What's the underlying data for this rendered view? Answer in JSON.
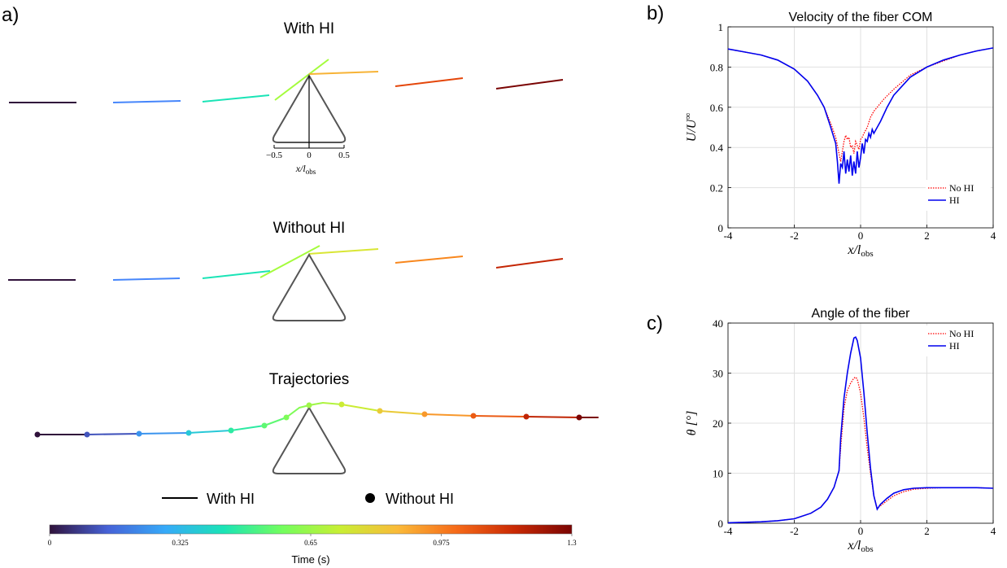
{
  "panel_labels": {
    "a": "a)",
    "b": "b)",
    "c": "c)"
  },
  "panel_a": {
    "with_hi_title": "With HI",
    "without_hi_title": "Without HI",
    "trajectories_title": "Trajectories",
    "inset_ticks": [
      "−0.5",
      "0",
      "0.5"
    ],
    "inset_xlabel": "x/l",
    "inset_xlabel_sub": "obs",
    "legend": {
      "line_label": "With HI",
      "dot_label": "Without HI"
    },
    "colorbar": {
      "label": "Time (s)",
      "ticks": [
        "0",
        "0.325",
        "0.65",
        "0.975",
        "1.3"
      ],
      "colors": [
        "#30123b",
        "#4662d7",
        "#36aaf9",
        "#1ae4b6",
        "#72fe5e",
        "#c8ef34",
        "#faba39",
        "#f66b19",
        "#ca2a04",
        "#7a0403"
      ]
    }
  },
  "chart_data": [
    {
      "type": "line",
      "title": "Velocity of the fiber COM",
      "xlabel": "x/l",
      "xlabel_sub": "obs",
      "ylabel": "U/U",
      "ylabel_sup": "∞",
      "xlim": [
        -4,
        4
      ],
      "ylim": [
        0,
        1
      ],
      "xticks": [
        -4,
        -2,
        0,
        2,
        4
      ],
      "yticks": [
        0,
        0.2,
        0.4,
        0.6,
        0.8,
        1
      ],
      "grid": true,
      "legend_position": "bottom-right",
      "series": [
        {
          "name": "No HI",
          "color": "#ff0000",
          "dash": "dotted",
          "x": [
            -4,
            -3.5,
            -3,
            -2.5,
            -2,
            -1.6,
            -1.3,
            -1.1,
            -0.9,
            -0.75,
            -0.65,
            -0.6,
            -0.5,
            -0.45,
            -0.4,
            -0.35,
            -0.3,
            -0.25,
            -0.2,
            -0.15,
            -0.1,
            -0.05,
            0,
            0.05,
            0.1,
            0.2,
            0.3,
            0.4,
            0.5,
            0.7,
            1,
            1.5,
            2,
            2.5,
            3,
            3.5,
            4
          ],
          "y": [
            0.89,
            0.875,
            0.86,
            0.835,
            0.79,
            0.73,
            0.66,
            0.6,
            0.52,
            0.45,
            0.37,
            0.33,
            0.43,
            0.46,
            0.44,
            0.45,
            0.4,
            0.41,
            0.37,
            0.43,
            0.41,
            0.39,
            0.44,
            0.45,
            0.47,
            0.5,
            0.55,
            0.58,
            0.6,
            0.64,
            0.69,
            0.76,
            0.8,
            0.83,
            0.86,
            0.88,
            0.895
          ]
        },
        {
          "name": "HI",
          "color": "#0000ee",
          "dash": "solid",
          "x": [
            -4,
            -3.5,
            -3,
            -2.5,
            -2,
            -1.6,
            -1.3,
            -1.1,
            -0.9,
            -0.75,
            -0.7,
            -0.65,
            -0.6,
            -0.55,
            -0.5,
            -0.45,
            -0.4,
            -0.35,
            -0.3,
            -0.25,
            -0.2,
            -0.15,
            -0.1,
            -0.05,
            0,
            0.05,
            0.1,
            0.15,
            0.2,
            0.25,
            0.3,
            0.35,
            0.4,
            0.5,
            0.6,
            0.8,
            1,
            1.5,
            2,
            2.5,
            3,
            3.5,
            4
          ],
          "y": [
            0.89,
            0.875,
            0.86,
            0.835,
            0.79,
            0.73,
            0.66,
            0.6,
            0.5,
            0.42,
            0.33,
            0.22,
            0.32,
            0.3,
            0.38,
            0.27,
            0.34,
            0.28,
            0.36,
            0.26,
            0.33,
            0.27,
            0.38,
            0.3,
            0.35,
            0.42,
            0.37,
            0.44,
            0.43,
            0.47,
            0.45,
            0.49,
            0.47,
            0.5,
            0.53,
            0.6,
            0.66,
            0.75,
            0.8,
            0.835,
            0.86,
            0.88,
            0.895
          ]
        }
      ]
    },
    {
      "type": "line",
      "title": "Angle of the fiber",
      "xlabel": "x/l",
      "xlabel_sub": "obs",
      "ylabel": "θ [°]",
      "xlim": [
        -4,
        4
      ],
      "ylim": [
        0,
        40
      ],
      "xticks": [
        -4,
        -2,
        0,
        2,
        4
      ],
      "yticks": [
        0,
        10,
        20,
        30,
        40
      ],
      "grid": true,
      "legend_position": "top-right",
      "series": [
        {
          "name": "No HI",
          "color": "#ff0000",
          "dash": "dotted",
          "x": [
            -4,
            -3,
            -2.5,
            -2,
            -1.5,
            -1.2,
            -1,
            -0.8,
            -0.65,
            -0.6,
            -0.5,
            -0.4,
            -0.3,
            -0.2,
            -0.15,
            -0.1,
            0,
            0.1,
            0.2,
            0.3,
            0.4,
            0.5,
            0.6,
            0.8,
            1,
            1.3,
            1.6,
            2,
            2.5,
            3,
            3.5,
            4
          ],
          "y": [
            0.1,
            0.3,
            0.5,
            0.9,
            2,
            3.2,
            4.8,
            7.2,
            10.5,
            15,
            23,
            26.5,
            28,
            29,
            29.2,
            28.8,
            26,
            21,
            15,
            10,
            5.5,
            3,
            3.5,
            4.5,
            5.5,
            6.3,
            6.8,
            7,
            7.1,
            7.1,
            7.1,
            7
          ]
        },
        {
          "name": "HI",
          "color": "#0000ee",
          "dash": "solid",
          "x": [
            -4,
            -3,
            -2.5,
            -2,
            -1.5,
            -1.2,
            -1,
            -0.8,
            -0.65,
            -0.6,
            -0.5,
            -0.4,
            -0.3,
            -0.2,
            -0.15,
            -0.1,
            0,
            0.1,
            0.2,
            0.3,
            0.4,
            0.5,
            0.6,
            0.8,
            1,
            1.3,
            1.6,
            2,
            2.5,
            3,
            3.5,
            4
          ],
          "y": [
            0.1,
            0.3,
            0.5,
            0.9,
            2,
            3.2,
            4.8,
            7.2,
            10.5,
            17,
            25,
            30,
            34,
            37,
            37.2,
            36.5,
            33,
            26,
            18,
            11,
            5.5,
            2.8,
            3.8,
            5,
            6,
            6.7,
            7,
            7.1,
            7.1,
            7.1,
            7.1,
            7
          ]
        }
      ]
    }
  ]
}
